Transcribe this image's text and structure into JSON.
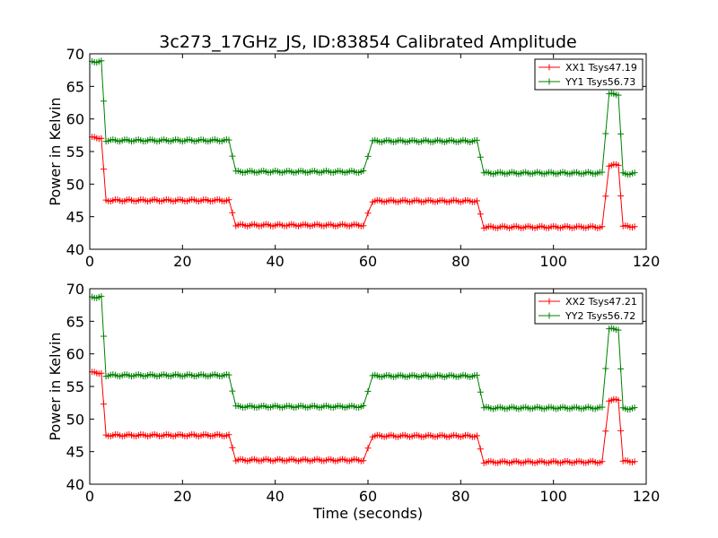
{
  "chart_data": {
    "title": "3c273_17GHz_JS, ID:83854 Calibrated Amplitude",
    "xlabel": "Time (seconds)",
    "grid": false,
    "legend_position": "top-right",
    "panels": [
      {
        "type": "line",
        "ylabel": "Power in Kelvin",
        "xlim": [
          0,
          120
        ],
        "ylim": [
          40,
          70
        ],
        "xticks": [
          "0",
          "20",
          "40",
          "60",
          "80",
          "100",
          "120"
        ],
        "yticks": [
          "40",
          "45",
          "50",
          "55",
          "60",
          "65",
          "70"
        ],
        "series": [
          {
            "name": "XX1 Tsys47.19",
            "color": "#ff0000",
            "marker": "+",
            "segments": [
              {
                "x0": 0.5,
                "x1": 2.5,
                "y": 57.1
              },
              {
                "x0": 3.5,
                "x1": 30.0,
                "y": 47.5
              },
              {
                "x0": 31.5,
                "x1": 59.0,
                "y": 43.7
              },
              {
                "x0": 61.0,
                "x1": 83.5,
                "y": 47.4
              },
              {
                "x0": 85.0,
                "x1": 110.5,
                "y": 43.4
              },
              {
                "x0": 112.0,
                "x1": 114.0,
                "y": 52.9
              },
              {
                "x0": 115.0,
                "x1": 117.5,
                "y": 43.5
              }
            ]
          },
          {
            "name": "YY1 Tsys56.73",
            "color": "#008000",
            "marker": "+",
            "segments": [
              {
                "x0": 0.5,
                "x1": 2.5,
                "y": 68.8
              },
              {
                "x0": 3.5,
                "x1": 30.0,
                "y": 56.7
              },
              {
                "x0": 31.5,
                "x1": 59.0,
                "y": 51.9
              },
              {
                "x0": 61.0,
                "x1": 83.5,
                "y": 56.6
              },
              {
                "x0": 85.0,
                "x1": 110.5,
                "y": 51.7
              },
              {
                "x0": 112.0,
                "x1": 114.0,
                "y": 63.8
              },
              {
                "x0": 115.0,
                "x1": 117.5,
                "y": 51.6
              }
            ]
          }
        ]
      },
      {
        "type": "line",
        "ylabel": "Power in Kelvin",
        "xlim": [
          0,
          120
        ],
        "ylim": [
          40,
          70
        ],
        "xticks": [
          "0",
          "20",
          "40",
          "60",
          "80",
          "100",
          "120"
        ],
        "yticks": [
          "40",
          "45",
          "50",
          "55",
          "60",
          "65",
          "70"
        ],
        "series": [
          {
            "name": "XX2 Tsys47.21",
            "color": "#ff0000",
            "marker": "+",
            "segments": [
              {
                "x0": 0.5,
                "x1": 2.5,
                "y": 57.1
              },
              {
                "x0": 3.5,
                "x1": 30.0,
                "y": 47.5
              },
              {
                "x0": 31.5,
                "x1": 59.0,
                "y": 43.7
              },
              {
                "x0": 61.0,
                "x1": 83.5,
                "y": 47.4
              },
              {
                "x0": 85.0,
                "x1": 110.5,
                "y": 43.4
              },
              {
                "x0": 112.0,
                "x1": 114.0,
                "y": 52.9
              },
              {
                "x0": 115.0,
                "x1": 117.5,
                "y": 43.5
              }
            ]
          },
          {
            "name": "YY2 Tsys56.72",
            "color": "#008000",
            "marker": "+",
            "segments": [
              {
                "x0": 0.5,
                "x1": 2.5,
                "y": 68.7
              },
              {
                "x0": 3.5,
                "x1": 30.0,
                "y": 56.7
              },
              {
                "x0": 31.5,
                "x1": 59.0,
                "y": 51.9
              },
              {
                "x0": 61.0,
                "x1": 83.5,
                "y": 56.6
              },
              {
                "x0": 85.0,
                "x1": 110.5,
                "y": 51.7
              },
              {
                "x0": 112.0,
                "x1": 114.0,
                "y": 63.8
              },
              {
                "x0": 115.0,
                "x1": 117.5,
                "y": 51.6
              }
            ]
          }
        ]
      }
    ]
  }
}
